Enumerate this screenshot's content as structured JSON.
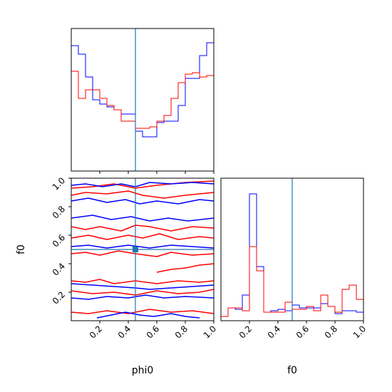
{
  "chart_data": [
    {
      "type": "histogram",
      "panel": "phi0-marginal",
      "xlim": [
        0,
        1
      ],
      "bin_edges": [
        0.0,
        0.05,
        0.1,
        0.15,
        0.2,
        0.25,
        0.3,
        0.35,
        0.4,
        0.45,
        0.5,
        0.55,
        0.6,
        0.65,
        0.7,
        0.75,
        0.8,
        0.85,
        0.9,
        0.95,
        1.0
      ],
      "series": [
        {
          "color": "#0000ff",
          "values": [
            0.88,
            0.82,
            0.66,
            0.5,
            0.47,
            0.45,
            0.43,
            0.4,
            0.4,
            0.28,
            0.24,
            0.24,
            0.34,
            0.35,
            0.35,
            0.46,
            0.65,
            0.65,
            0.81,
            0.9
          ]
        },
        {
          "color": "#ff0000",
          "values": [
            0.7,
            0.51,
            0.57,
            0.57,
            0.51,
            0.46,
            0.43,
            0.35,
            0.35,
            0.3,
            0.3,
            0.31,
            0.35,
            0.39,
            0.51,
            0.62,
            0.68,
            0.69,
            0.66,
            0.67
          ]
        }
      ],
      "truth": 0.45
    },
    {
      "type": "contour",
      "panel": "phi0-vs-f0",
      "xlabel": "phi0",
      "ylabel": "f0",
      "xlim": [
        0,
        1
      ],
      "ylim": [
        0,
        1
      ],
      "xticks": [
        "0.2",
        "0.4",
        "0.6",
        "0.8",
        "1.0"
      ],
      "yticks": [
        "0.2",
        "0.4",
        "0.6",
        "0.8",
        "1.0"
      ],
      "truth": {
        "x": 0.45,
        "y": 0.5
      },
      "contours": [
        {
          "color": "#ff0000",
          "points": [
            [
              0.0,
              0.93
            ],
            [
              0.15,
              0.94
            ],
            [
              0.3,
              0.96
            ],
            [
              0.45,
              0.93
            ],
            [
              0.6,
              0.95
            ],
            [
              0.8,
              0.97
            ],
            [
              1.0,
              0.98
            ]
          ]
        },
        {
          "color": "#ff0000",
          "points": [
            [
              0.0,
              0.88
            ],
            [
              0.1,
              0.9
            ],
            [
              0.25,
              0.89
            ],
            [
              0.4,
              0.91
            ],
            [
              0.5,
              0.88
            ],
            [
              0.65,
              0.86
            ],
            [
              0.8,
              0.88
            ],
            [
              1.0,
              0.9
            ]
          ]
        },
        {
          "color": "#ff0000",
          "points": [
            [
              0.0,
              0.66
            ],
            [
              0.1,
              0.64
            ],
            [
              0.2,
              0.66
            ],
            [
              0.35,
              0.63
            ],
            [
              0.45,
              0.67
            ],
            [
              0.55,
              0.66
            ],
            [
              0.7,
              0.63
            ],
            [
              0.85,
              0.66
            ],
            [
              1.0,
              0.65
            ]
          ]
        },
        {
          "color": "#ff0000",
          "points": [
            [
              0.0,
              0.58
            ],
            [
              0.12,
              0.6
            ],
            [
              0.25,
              0.57
            ],
            [
              0.4,
              0.6
            ],
            [
              0.5,
              0.58
            ],
            [
              0.62,
              0.61
            ],
            [
              0.75,
              0.57
            ],
            [
              0.9,
              0.59
            ],
            [
              1.0,
              0.58
            ]
          ]
        },
        {
          "color": "#ff0000",
          "points": [
            [
              0.0,
              0.47
            ],
            [
              0.1,
              0.48
            ],
            [
              0.2,
              0.46
            ],
            [
              0.33,
              0.49
            ],
            [
              0.45,
              0.47
            ],
            [
              0.6,
              0.45
            ],
            [
              0.7,
              0.48
            ],
            [
              0.85,
              0.46
            ],
            [
              1.0,
              0.47
            ]
          ]
        },
        {
          "color": "#ff0000",
          "points": [
            [
              0.6,
              0.34
            ],
            [
              0.7,
              0.36
            ],
            [
              0.8,
              0.37
            ],
            [
              0.9,
              0.39
            ],
            [
              1.0,
              0.4
            ]
          ]
        },
        {
          "color": "#ff0000",
          "points": [
            [
              0.0,
              0.28
            ],
            [
              0.1,
              0.27
            ],
            [
              0.2,
              0.29
            ],
            [
              0.3,
              0.26
            ],
            [
              0.45,
              0.28
            ],
            [
              0.6,
              0.26
            ],
            [
              0.75,
              0.28
            ],
            [
              0.9,
              0.27
            ],
            [
              1.0,
              0.28
            ]
          ]
        },
        {
          "color": "#ff0000",
          "points": [
            [
              0.0,
              0.21
            ],
            [
              0.15,
              0.19
            ],
            [
              0.3,
              0.2
            ],
            [
              0.45,
              0.18
            ],
            [
              0.6,
              0.21
            ],
            [
              0.75,
              0.19
            ],
            [
              0.9,
              0.2
            ],
            [
              1.0,
              0.22
            ]
          ]
        },
        {
          "color": "#ff0000",
          "points": [
            [
              0.0,
              0.06
            ],
            [
              0.12,
              0.05
            ],
            [
              0.25,
              0.07
            ],
            [
              0.4,
              0.05
            ],
            [
              0.55,
              0.08
            ],
            [
              0.7,
              0.06
            ],
            [
              0.85,
              0.07
            ],
            [
              1.0,
              0.05
            ]
          ]
        },
        {
          "color": "#0000ff",
          "points": [
            [
              0.0,
              0.95
            ],
            [
              0.1,
              0.96
            ],
            [
              0.22,
              0.94
            ],
            [
              0.35,
              0.96
            ],
            [
              0.45,
              0.94
            ],
            [
              0.55,
              0.97
            ],
            [
              0.7,
              0.96
            ],
            [
              0.85,
              0.97
            ],
            [
              1.0,
              0.96
            ]
          ]
        },
        {
          "color": "#0000ff",
          "points": [
            [
              0.0,
              0.84
            ],
            [
              0.12,
              0.86
            ],
            [
              0.25,
              0.83
            ],
            [
              0.38,
              0.85
            ],
            [
              0.48,
              0.82
            ],
            [
              0.6,
              0.84
            ],
            [
              0.75,
              0.82
            ],
            [
              0.9,
              0.85
            ],
            [
              1.0,
              0.84
            ]
          ]
        },
        {
          "color": "#0000ff",
          "points": [
            [
              0.0,
              0.72
            ],
            [
              0.15,
              0.74
            ],
            [
              0.28,
              0.71
            ],
            [
              0.42,
              0.73
            ],
            [
              0.55,
              0.7
            ],
            [
              0.68,
              0.72
            ],
            [
              0.82,
              0.7
            ],
            [
              1.0,
              0.72
            ]
          ]
        },
        {
          "color": "#0000ff",
          "points": [
            [
              0.0,
              0.52
            ],
            [
              0.12,
              0.53
            ],
            [
              0.25,
              0.51
            ],
            [
              0.4,
              0.53
            ],
            [
              0.55,
              0.51
            ],
            [
              0.7,
              0.53
            ],
            [
              0.85,
              0.52
            ],
            [
              1.0,
              0.51
            ]
          ]
        },
        {
          "color": "#0000ff",
          "points": [
            [
              0.0,
              0.26
            ],
            [
              0.15,
              0.25
            ],
            [
              0.3,
              0.24
            ],
            [
              0.45,
              0.23
            ],
            [
              0.55,
              0.22
            ],
            [
              0.7,
              0.23
            ],
            [
              0.85,
              0.24
            ],
            [
              1.0,
              0.25
            ]
          ]
        },
        {
          "color": "#0000ff",
          "points": [
            [
              0.0,
              0.16
            ],
            [
              0.12,
              0.15
            ],
            [
              0.25,
              0.17
            ],
            [
              0.4,
              0.16
            ],
            [
              0.52,
              0.18
            ],
            [
              0.65,
              0.16
            ],
            [
              0.8,
              0.17
            ],
            [
              1.0,
              0.16
            ]
          ]
        },
        {
          "color": "#0000ff",
          "points": [
            [
              0.18,
              0.02
            ],
            [
              0.28,
              0.04
            ],
            [
              0.38,
              0.06
            ],
            [
              0.48,
              0.04
            ],
            [
              0.58,
              0.03
            ],
            [
              0.7,
              0.05
            ],
            [
              0.8,
              0.03
            ],
            [
              0.9,
              0.02
            ]
          ]
        }
      ]
    },
    {
      "type": "histogram",
      "panel": "f0-marginal",
      "xlabel": "f0",
      "xlim": [
        0,
        1
      ],
      "xticks": [
        "0.2",
        "0.4",
        "0.6",
        "0.8",
        "1.0"
      ],
      "bin_edges": [
        0.0,
        0.05,
        0.1,
        0.15,
        0.2,
        0.25,
        0.3,
        0.35,
        0.4,
        0.45,
        0.5,
        0.55,
        0.6,
        0.65,
        0.7,
        0.75,
        0.8,
        0.85,
        0.9,
        0.95,
        1.0
      ],
      "series": [
        {
          "color": "#0000ff",
          "values": [
            0.03,
            0.09,
            0.08,
            0.18,
            0.89,
            0.38,
            0.06,
            0.07,
            0.08,
            0.07,
            0.11,
            0.09,
            0.09,
            0.09,
            0.12,
            0.1,
            0.05,
            0.07,
            0.07,
            0.06
          ]
        },
        {
          "color": "#ff0000",
          "values": [
            0.03,
            0.09,
            0.09,
            0.07,
            0.52,
            0.35,
            0.06,
            0.06,
            0.06,
            0.13,
            0.08,
            0.08,
            0.1,
            0.07,
            0.18,
            0.1,
            0.06,
            0.22,
            0.25,
            0.15
          ]
        }
      ],
      "truth": 0.5
    }
  ]
}
